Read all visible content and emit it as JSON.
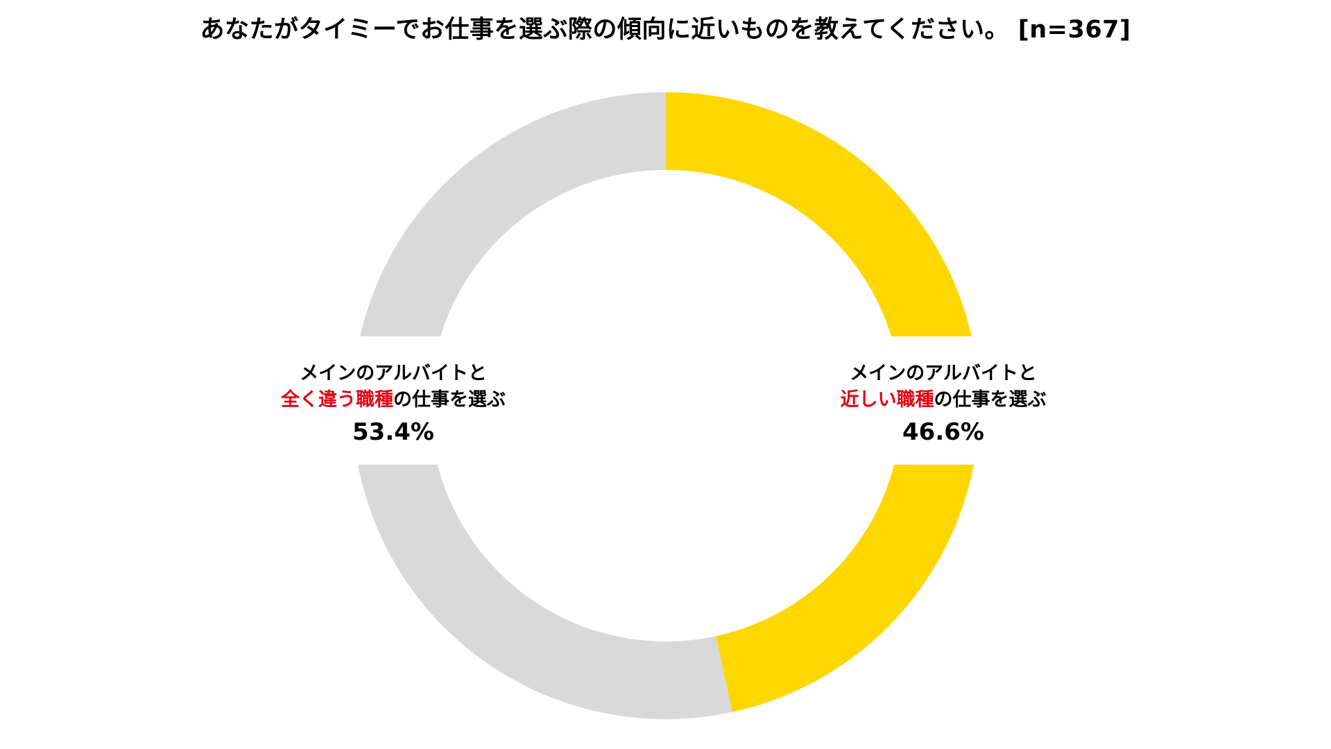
{
  "title": "あなたがタイミーでお仕事を選ぶ際の傾向に近いものを教えてください。 [n=367]",
  "chart_data": {
    "type": "pie",
    "title": "あなたがタイミーでお仕事を選ぶ際の傾向に近いものを教えてください。 [n=367]",
    "slices": [
      {
        "line1": "メインのアルバイトと",
        "highlight": "近しい職種",
        "rest": "の仕事を選ぶ",
        "value": 46.6,
        "value_label": "46.6%",
        "color": "#ffd700"
      },
      {
        "line1": "メインのアルバイトと",
        "highlight": "全く違う職種",
        "rest": "の仕事を選ぶ",
        "value": 53.4,
        "value_label": "53.4%",
        "color": "#d9d9d9"
      }
    ],
    "highlight_color": "#e60012",
    "start": "12 o'clock",
    "direction": "clockwise",
    "hole": "donut"
  }
}
